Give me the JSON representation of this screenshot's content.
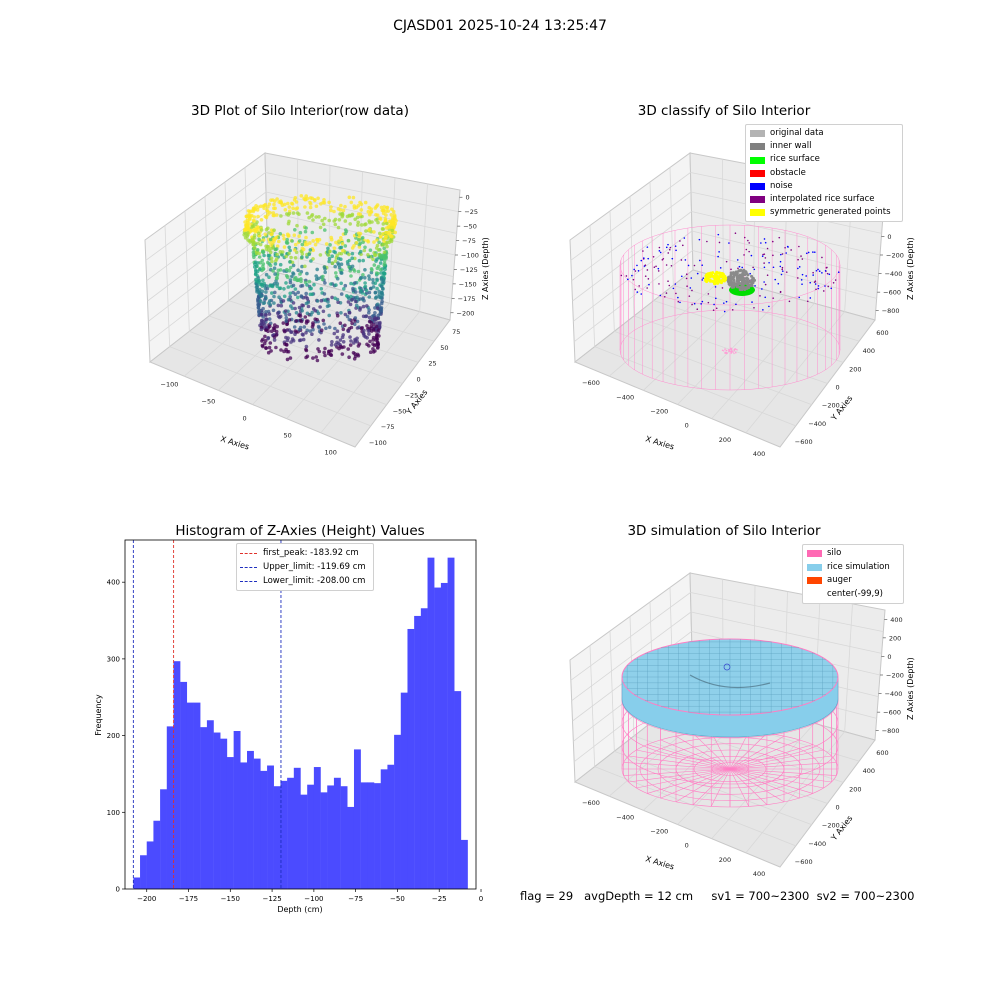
{
  "figure_title": "CJASD01 2025-10-24 13:25:47",
  "status_line": "flag = 29   avgDepth = 12 cm     sv1 = 700~2300  sv2 = 700~2300",
  "panels": {
    "raw": {
      "title": "3D Plot of Silo Interior(row data)",
      "xlabel": "X Axies",
      "ylabel": "Y Axies",
      "zlabel": "Z Axies (Depth)",
      "xticks": [
        "−100",
        "−50",
        "0",
        "50",
        "100"
      ],
      "yticks": [
        "75",
        "50",
        "25",
        "0",
        "−25",
        "−50",
        "−75",
        "−100"
      ],
      "zticks": [
        "0",
        "−25",
        "−50",
        "−75",
        "−100",
        "−125",
        "−150",
        "−175",
        "−200"
      ],
      "colormap": [
        "#fde725",
        "#a0da39",
        "#4ac16d",
        "#1fa187",
        "#277f8e",
        "#365c8d",
        "#46327e",
        "#440154"
      ]
    },
    "classify": {
      "title": "3D classify of Silo Interior",
      "xlabel": "X Axies",
      "ylabel": "Y Axies",
      "zlabel": "Z Axies (Depth)",
      "xticks": [
        "−600",
        "−400",
        "−200",
        "0",
        "200",
        "400"
      ],
      "yticks": [
        "600",
        "400",
        "200",
        "0",
        "−200",
        "−400",
        "−600"
      ],
      "zticks": [
        "400",
        "200",
        "0",
        "−200",
        "−400",
        "−600",
        "−800"
      ],
      "legend": [
        {
          "label": "original data",
          "color": "#b3b3b3"
        },
        {
          "label": "inner wall",
          "color": "#808080"
        },
        {
          "label": "rice surface",
          "color": "#00ff00"
        },
        {
          "label": "obstacle",
          "color": "#ff0000"
        },
        {
          "label": "noise",
          "color": "#0000ff"
        },
        {
          "label": "interpolated rice surface",
          "color": "#800080"
        },
        {
          "label": "symmetric generated points",
          "color": "#ffff00"
        }
      ]
    },
    "simulation": {
      "title": "3D simulation of Silo Interior",
      "xlabel": "X Axies",
      "ylabel": "Y Axies",
      "zlabel": "Z Axies (Depth)",
      "xticks": [
        "−600",
        "−400",
        "−200",
        "0",
        "200",
        "400"
      ],
      "yticks": [
        "600",
        "400",
        "200",
        "0",
        "−200",
        "−400",
        "−600"
      ],
      "zticks": [
        "400",
        "200",
        "0",
        "−200",
        "−400",
        "−600",
        "−800"
      ],
      "legend": [
        {
          "label": "silo",
          "color": "#ff69b4"
        },
        {
          "label": "rice simulation",
          "color": "#87ceeb"
        },
        {
          "label": "auger",
          "color": "#ff4500"
        },
        {
          "label": "center(-99,9)",
          "color": ""
        }
      ]
    }
  },
  "chart_data": {
    "type": "bar",
    "title": "Histogram of Z-Axies (Height) Values",
    "xlabel": "Depth (cm)",
    "ylabel": "Frequency",
    "xlim": [
      -213,
      -3
    ],
    "ylim": [
      0,
      455
    ],
    "xticks": [
      -200,
      -175,
      -150,
      -125,
      -100,
      -75,
      -50,
      -25,
      0
    ],
    "yticks": [
      0,
      100,
      200,
      300,
      400
    ],
    "bin_start": -208,
    "bin_width": 4,
    "values": [
      15,
      44,
      62,
      89,
      130,
      212,
      297,
      270,
      243,
      243,
      211,
      220,
      204,
      196,
      172,
      206,
      165,
      180,
      170,
      154,
      161,
      134,
      141,
      145,
      158,
      123,
      136,
      159,
      126,
      135,
      145,
      134,
      107,
      182,
      139,
      139,
      138,
      156,
      162,
      201,
      256,
      339,
      356,
      366,
      432,
      393,
      399,
      432,
      258,
      64
    ],
    "color": "#4b4bff",
    "vlines": [
      {
        "label": "first_peak: -183.92 cm",
        "x": -183.92,
        "color": "#e0302a"
      },
      {
        "label": "Upper_limit: -119.69 cm",
        "x": -119.69,
        "color": "#1f2fbf"
      },
      {
        "label": "Lower_limit: -208.00 cm",
        "x": -208.0,
        "color": "#1f2fbf"
      }
    ],
    "legend_position": "upper-center"
  }
}
